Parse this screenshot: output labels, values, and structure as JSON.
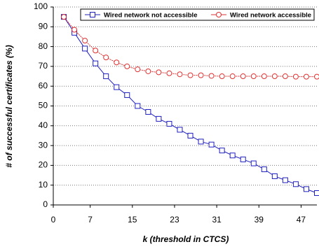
{
  "chart_data": {
    "type": "line",
    "x_label": "k (threshold in CTCS)",
    "y_label": "# of successful certificates (%)",
    "x": [
      2,
      4,
      6,
      8,
      10,
      12,
      14,
      16,
      18,
      20,
      22,
      24,
      26,
      28,
      30,
      32,
      34,
      36,
      38,
      40,
      42,
      44,
      46,
      48,
      50
    ],
    "series": [
      {
        "name": "Wired network not accessible",
        "color": "#1f1fbf",
        "marker": "square",
        "values": [
          95,
          87,
          79,
          71.5,
          65,
          59.5,
          55.5,
          50,
          47,
          43.5,
          41,
          38,
          35,
          32,
          30.5,
          27.5,
          25,
          23,
          21,
          18,
          14.5,
          12.5,
          10.5,
          8,
          6
        ]
      },
      {
        "name": "Wired network accessible",
        "color": "#e03030",
        "marker": "circle",
        "values": [
          95,
          88.5,
          83,
          78,
          74.5,
          72,
          70,
          68.5,
          67.5,
          67,
          66.5,
          66,
          65.5,
          65.5,
          65.2,
          65,
          65,
          65,
          65,
          65,
          65,
          65,
          64.8,
          64.8,
          64.8
        ]
      }
    ],
    "xlim": [
      0,
      50
    ],
    "xticks": [
      0,
      7,
      15,
      23,
      31,
      39,
      47
    ],
    "ylim": [
      0,
      100
    ],
    "yticks": [
      0,
      10,
      20,
      30,
      40,
      50,
      60,
      70,
      80,
      90,
      100
    ],
    "grid": true,
    "legend": "top-right"
  }
}
